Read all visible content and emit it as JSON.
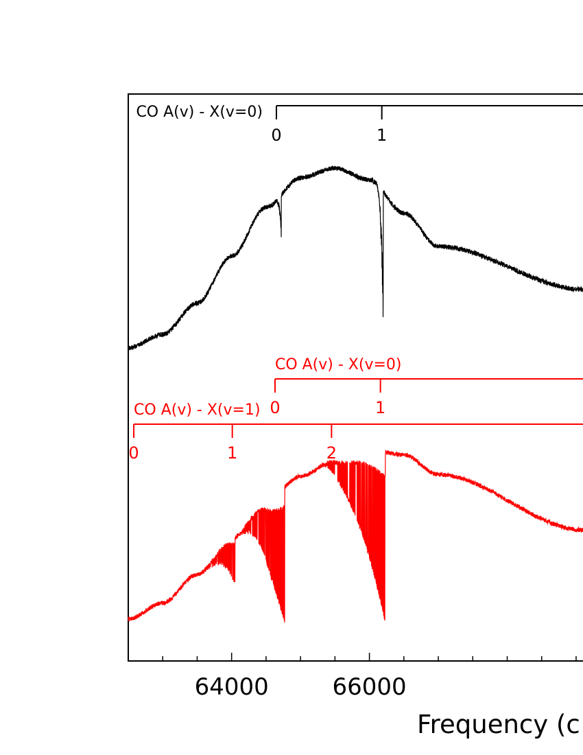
{
  "chart_data": {
    "type": "line",
    "xlabel": "Frequency (c",
    "x_ticks": [
      {
        "value": 64000,
        "label": "64000"
      },
      {
        "value": 66000,
        "label": "66000"
      }
    ],
    "xlim": [
      62500,
      69100
    ],
    "minor_tick_step": 500,
    "grid": false,
    "series": [
      {
        "color": "#000000",
        "envelope": [
          [
            62500,
            0.08
          ],
          [
            63000,
            0.15
          ],
          [
            63500,
            0.31
          ],
          [
            64000,
            0.55
          ],
          [
            64500,
            0.8
          ],
          [
            65000,
            0.95
          ],
          [
            65500,
            1.0
          ],
          [
            66000,
            0.94
          ],
          [
            66500,
            0.77
          ],
          [
            67000,
            0.6
          ],
          [
            69100,
            0.38
          ]
        ],
        "dips": [
          {
            "center": 64720,
            "depth": 0.22,
            "width": 90
          },
          {
            "center": 66200,
            "depth": 0.68,
            "width": 120
          }
        ]
      },
      {
        "color": "#ff0000",
        "envelope": [
          [
            62500,
            0.05
          ],
          [
            63000,
            0.14
          ],
          [
            63500,
            0.3
          ],
          [
            64000,
            0.5
          ],
          [
            64500,
            0.71
          ],
          [
            65000,
            0.85
          ],
          [
            65500,
            0.94
          ],
          [
            66000,
            1.0
          ],
          [
            66500,
            0.97
          ],
          [
            67000,
            0.86
          ],
          [
            69100,
            0.55
          ]
        ],
        "bands": [
          {
            "start": 63600,
            "head": 64050,
            "depth": 0.25
          },
          {
            "start": 64100,
            "head": 64770,
            "depth": 0.75
          },
          {
            "start": 65300,
            "head": 66230,
            "depth": 0.95
          }
        ]
      }
    ],
    "progressions": [
      {
        "label": "CO A(v) - X(v=0)",
        "color": "#000000",
        "ticks": [
          {
            "label": "0",
            "value": 64650
          },
          {
            "label": "1",
            "value": 66180
          }
        ]
      },
      {
        "label": "CO A(v) - X(v=0)",
        "color": "#ff0000",
        "ticks": [
          {
            "label": "0",
            "value": 64630
          },
          {
            "label": "1",
            "value": 66160
          }
        ]
      },
      {
        "label": "CO A(v) - X(v=1)",
        "color": "#ff0000",
        "ticks": [
          {
            "label": "0",
            "value": 62580
          },
          {
            "label": "1",
            "value": 64010
          },
          {
            "label": "2",
            "value": 65450
          }
        ]
      }
    ]
  }
}
